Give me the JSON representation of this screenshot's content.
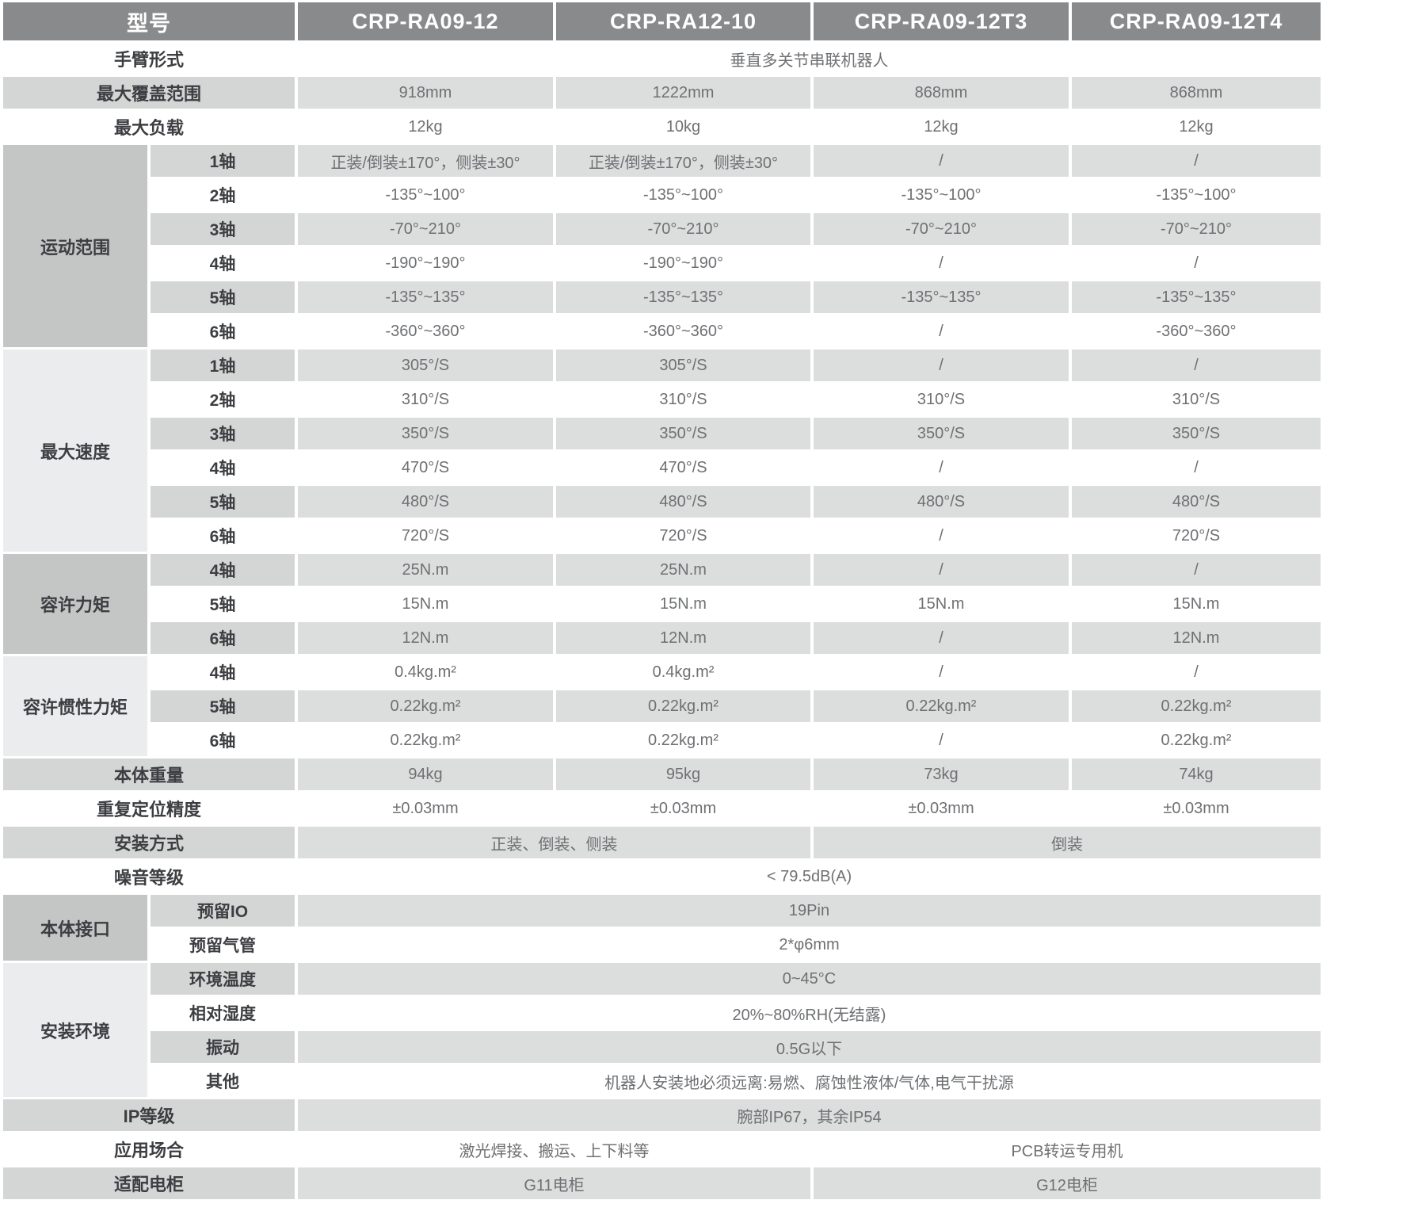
{
  "colors": {
    "header_bg": "#898a8b",
    "header_text": "#ffffff",
    "shaded_row_bg": "#dcdddd",
    "shaded_label_bg": "#d4d5d5",
    "group_dark_bg": "#c4c5c5",
    "group_light_bg": "#ebeced",
    "label_text": "#3c3e41",
    "value_text": "#6e7073"
  },
  "table": {
    "header": {
      "model_label": "型号",
      "models": [
        "CRP-RA09-12",
        "CRP-RA12-10",
        "CRP-RA09-12T3",
        "CRP-RA09-12T4"
      ]
    },
    "rows": [
      {
        "label": "手臂形式",
        "shaded": false,
        "cells": [
          {
            "text": "垂直多关节串联机器人",
            "span": 4
          }
        ]
      },
      {
        "label": "最大覆盖范围",
        "shaded": true,
        "cells": [
          {
            "text": "918mm"
          },
          {
            "text": "1222mm"
          },
          {
            "text": "868mm"
          },
          {
            "text": "868mm"
          }
        ]
      },
      {
        "label": "最大负载",
        "shaded": false,
        "cells": [
          {
            "text": "12kg"
          },
          {
            "text": "10kg"
          },
          {
            "text": "12kg"
          },
          {
            "text": "12kg"
          }
        ]
      },
      {
        "group": {
          "label": "运动范围",
          "span": 6,
          "shade": "dark"
        },
        "sub": "1轴",
        "shaded": true,
        "cells": [
          {
            "text": "正装/倒装±170°，侧装±30°"
          },
          {
            "text": "正装/倒装±170°，侧装±30°"
          },
          {
            "text": "/"
          },
          {
            "text": "/"
          }
        ]
      },
      {
        "sub": "2轴",
        "shaded": false,
        "cells": [
          {
            "text": "-135°~100°"
          },
          {
            "text": "-135°~100°"
          },
          {
            "text": "-135°~100°"
          },
          {
            "text": "-135°~100°"
          }
        ]
      },
      {
        "sub": "3轴",
        "shaded": true,
        "cells": [
          {
            "text": "-70°~210°"
          },
          {
            "text": "-70°~210°"
          },
          {
            "text": "-70°~210°"
          },
          {
            "text": "-70°~210°"
          }
        ]
      },
      {
        "sub": "4轴",
        "shaded": false,
        "cells": [
          {
            "text": "-190°~190°"
          },
          {
            "text": "-190°~190°"
          },
          {
            "text": "/"
          },
          {
            "text": "/"
          }
        ]
      },
      {
        "sub": "5轴",
        "shaded": true,
        "cells": [
          {
            "text": "-135°~135°"
          },
          {
            "text": "-135°~135°"
          },
          {
            "text": "-135°~135°"
          },
          {
            "text": "-135°~135°"
          }
        ]
      },
      {
        "sub": "6轴",
        "shaded": false,
        "cells": [
          {
            "text": "-360°~360°"
          },
          {
            "text": "-360°~360°"
          },
          {
            "text": "/"
          },
          {
            "text": "-360°~360°"
          }
        ]
      },
      {
        "group": {
          "label": "最大速度",
          "span": 6,
          "shade": "light"
        },
        "sub": "1轴",
        "shaded": true,
        "cells": [
          {
            "text": "305°/S"
          },
          {
            "text": "305°/S"
          },
          {
            "text": "/"
          },
          {
            "text": "/"
          }
        ]
      },
      {
        "sub": "2轴",
        "shaded": false,
        "cells": [
          {
            "text": "310°/S"
          },
          {
            "text": "310°/S"
          },
          {
            "text": "310°/S"
          },
          {
            "text": "310°/S"
          }
        ]
      },
      {
        "sub": "3轴",
        "shaded": true,
        "cells": [
          {
            "text": "350°/S"
          },
          {
            "text": "350°/S"
          },
          {
            "text": "350°/S"
          },
          {
            "text": "350°/S"
          }
        ]
      },
      {
        "sub": "4轴",
        "shaded": false,
        "cells": [
          {
            "text": "470°/S"
          },
          {
            "text": "470°/S"
          },
          {
            "text": "/"
          },
          {
            "text": "/"
          }
        ]
      },
      {
        "sub": "5轴",
        "shaded": true,
        "cells": [
          {
            "text": "480°/S"
          },
          {
            "text": "480°/S"
          },
          {
            "text": "480°/S"
          },
          {
            "text": "480°/S"
          }
        ]
      },
      {
        "sub": "6轴",
        "shaded": false,
        "cells": [
          {
            "text": "720°/S"
          },
          {
            "text": "720°/S"
          },
          {
            "text": "/"
          },
          {
            "text": "720°/S"
          }
        ]
      },
      {
        "group": {
          "label": "容许力矩",
          "span": 3,
          "shade": "dark"
        },
        "sub": "4轴",
        "shaded": true,
        "cells": [
          {
            "text": "25N.m"
          },
          {
            "text": "25N.m"
          },
          {
            "text": "/"
          },
          {
            "text": "/"
          }
        ]
      },
      {
        "sub": "5轴",
        "shaded": false,
        "cells": [
          {
            "text": "15N.m"
          },
          {
            "text": "15N.m"
          },
          {
            "text": "15N.m"
          },
          {
            "text": "15N.m"
          }
        ]
      },
      {
        "sub": "6轴",
        "shaded": true,
        "cells": [
          {
            "text": "12N.m"
          },
          {
            "text": "12N.m"
          },
          {
            "text": "/"
          },
          {
            "text": "12N.m"
          }
        ]
      },
      {
        "group": {
          "label": "容许惯性力矩",
          "span": 3,
          "shade": "light"
        },
        "sub": "4轴",
        "shaded": false,
        "cells": [
          {
            "text": "0.4kg.m²"
          },
          {
            "text": "0.4kg.m²"
          },
          {
            "text": "/"
          },
          {
            "text": "/"
          }
        ]
      },
      {
        "sub": "5轴",
        "shaded": true,
        "cells": [
          {
            "text": "0.22kg.m²"
          },
          {
            "text": "0.22kg.m²"
          },
          {
            "text": "0.22kg.m²"
          },
          {
            "text": "0.22kg.m²"
          }
        ]
      },
      {
        "sub": "6轴",
        "shaded": false,
        "cells": [
          {
            "text": "0.22kg.m²"
          },
          {
            "text": "0.22kg.m²"
          },
          {
            "text": "/"
          },
          {
            "text": "0.22kg.m²"
          }
        ]
      },
      {
        "label": "本体重量",
        "shaded": true,
        "cells": [
          {
            "text": "94kg"
          },
          {
            "text": "95kg"
          },
          {
            "text": "73kg"
          },
          {
            "text": "74kg"
          }
        ]
      },
      {
        "label": "重复定位精度",
        "shaded": false,
        "cells": [
          {
            "text": "±0.03mm"
          },
          {
            "text": "±0.03mm"
          },
          {
            "text": "±0.03mm"
          },
          {
            "text": "±0.03mm"
          }
        ]
      },
      {
        "label": "安装方式",
        "shaded": true,
        "cells": [
          {
            "text": "正装、倒装、侧装",
            "span": 2
          },
          {
            "text": "倒装",
            "span": 2
          }
        ]
      },
      {
        "label": "噪音等级",
        "shaded": false,
        "cells": [
          {
            "text": "< 79.5dB(A)",
            "span": 4
          }
        ]
      },
      {
        "group": {
          "label": "本体接口",
          "span": 2,
          "shade": "dark"
        },
        "sub": "预留IO",
        "shaded": true,
        "cells": [
          {
            "text": "19Pin",
            "span": 4
          }
        ]
      },
      {
        "sub": "预留气管",
        "shaded": false,
        "cells": [
          {
            "text": "2*φ6mm",
            "span": 4
          }
        ]
      },
      {
        "group": {
          "label": "安装环境",
          "span": 4,
          "shade": "light"
        },
        "sub": "环境温度",
        "shaded": true,
        "cells": [
          {
            "text": "0~45°C",
            "span": 4
          }
        ]
      },
      {
        "sub": "相对湿度",
        "shaded": false,
        "cells": [
          {
            "text": "20%~80%RH(无结露)",
            "span": 4
          }
        ]
      },
      {
        "sub": "振动",
        "shaded": true,
        "cells": [
          {
            "text": "0.5G以下",
            "span": 4
          }
        ]
      },
      {
        "sub": "其他",
        "shaded": false,
        "cells": [
          {
            "text": "机器人安装地必须远离:易燃、腐蚀性液体/气体,电气干扰源",
            "span": 4
          }
        ]
      },
      {
        "label": "IP等级",
        "shaded": true,
        "cells": [
          {
            "text": "腕部IP67，其余IP54",
            "span": 4
          }
        ]
      },
      {
        "label": "应用场合",
        "shaded": false,
        "cells": [
          {
            "text": "激光焊接、搬运、上下料等",
            "span": 2
          },
          {
            "text": "PCB转运专用机",
            "span": 2
          }
        ]
      },
      {
        "label": "适配电柜",
        "shaded": true,
        "cells": [
          {
            "text": "G11电柜",
            "span": 2
          },
          {
            "text": "G12电柜",
            "span": 2
          }
        ]
      }
    ]
  }
}
